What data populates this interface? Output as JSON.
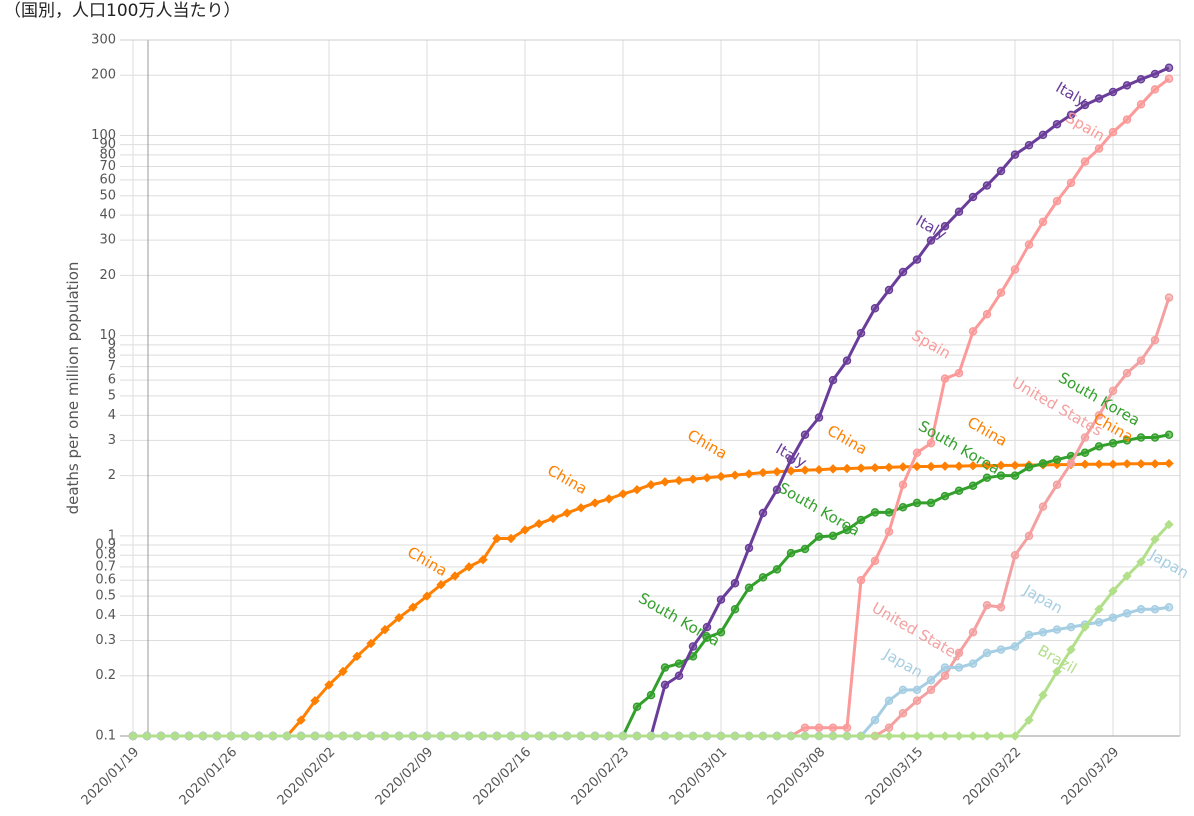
{
  "chart_data": {
    "type": "line",
    "title": "（国別，人口100万人当たり）",
    "y_label": "deaths per one million population",
    "log_scale": true,
    "grid": true,
    "categories": [
      "2020/01/19",
      "2020/01/20",
      "2020/01/21",
      "2020/01/22",
      "2020/01/23",
      "2020/01/24",
      "2020/01/25",
      "2020/01/26",
      "2020/01/27",
      "2020/01/28",
      "2020/01/29",
      "2020/01/30",
      "2020/01/31",
      "2020/02/01",
      "2020/02/02",
      "2020/02/03",
      "2020/02/04",
      "2020/02/05",
      "2020/02/06",
      "2020/02/07",
      "2020/02/08",
      "2020/02/09",
      "2020/02/10",
      "2020/02/11",
      "2020/02/12",
      "2020/02/13",
      "2020/02/14",
      "2020/02/15",
      "2020/02/16",
      "2020/02/17",
      "2020/02/18",
      "2020/02/19",
      "2020/02/20",
      "2020/02/21",
      "2020/02/22",
      "2020/02/23",
      "2020/02/24",
      "2020/02/25",
      "2020/02/26",
      "2020/02/27",
      "2020/02/28",
      "2020/02/29",
      "2020/03/01",
      "2020/03/02",
      "2020/03/03",
      "2020/03/04",
      "2020/03/05",
      "2020/03/06",
      "2020/03/07",
      "2020/03/08",
      "2020/03/09",
      "2020/03/10",
      "2020/03/11",
      "2020/03/12",
      "2020/03/13",
      "2020/03/14",
      "2020/03/15",
      "2020/03/16",
      "2020/03/17",
      "2020/03/18",
      "2020/03/19",
      "2020/03/20",
      "2020/03/21",
      "2020/03/22",
      "2020/03/23",
      "2020/03/24",
      "2020/03/25",
      "2020/03/26",
      "2020/03/27",
      "2020/03/28",
      "2020/03/29",
      "2020/03/30",
      "2020/03/31",
      "2020/04/01",
      "2020/04/02"
    ],
    "xticks": [
      "2020/01/19",
      "2020/01/26",
      "2020/02/02",
      "2020/02/09",
      "2020/02/16",
      "2020/02/23",
      "2020/03/01",
      "2020/03/08",
      "2020/03/15",
      "2020/03/22",
      "2020/03/29"
    ],
    "ylim": [
      0.1,
      300
    ],
    "yticks": [
      0.1,
      0.2,
      0.3,
      0.4,
      0.5,
      0.6,
      0.7,
      0.8,
      0.9,
      1,
      2,
      3,
      4,
      5,
      6,
      7,
      8,
      9,
      10,
      20,
      30,
      40,
      50,
      60,
      70,
      80,
      90,
      100,
      200,
      300
    ],
    "series": [
      {
        "name": "China",
        "color": "#ff7f00",
        "marker": "diamond",
        "values": [
          0.1,
          0.1,
          0.1,
          0.1,
          0.1,
          0.1,
          0.1,
          0.1,
          0.1,
          0.1,
          0.1,
          0.1,
          0.12,
          0.15,
          0.18,
          0.21,
          0.25,
          0.29,
          0.34,
          0.39,
          0.44,
          0.5,
          0.57,
          0.63,
          0.7,
          0.76,
          0.97,
          0.97,
          1.07,
          1.15,
          1.22,
          1.3,
          1.38,
          1.46,
          1.53,
          1.62,
          1.7,
          1.8,
          1.86,
          1.89,
          1.92,
          1.95,
          1.98,
          2.01,
          2.04,
          2.07,
          2.09,
          2.11,
          2.13,
          2.14,
          2.16,
          2.17,
          2.18,
          2.19,
          2.2,
          2.21,
          2.22,
          2.22,
          2.23,
          2.23,
          2.24,
          2.24,
          2.25,
          2.25,
          2.26,
          2.26,
          2.27,
          2.27,
          2.28,
          2.28,
          2.28,
          2.29,
          2.29,
          2.29,
          2.3
        ]
      },
      {
        "name": "South Korea",
        "color": "#33a02c",
        "marker": "circle",
        "values": [
          0.1,
          0.1,
          0.1,
          0.1,
          0.1,
          0.1,
          0.1,
          0.1,
          0.1,
          0.1,
          0.1,
          0.1,
          0.1,
          0.1,
          0.1,
          0.1,
          0.1,
          0.1,
          0.1,
          0.1,
          0.1,
          0.1,
          0.1,
          0.1,
          0.1,
          0.1,
          0.1,
          0.1,
          0.1,
          0.1,
          0.1,
          0.1,
          0.1,
          0.1,
          0.1,
          0.1,
          0.14,
          0.16,
          0.22,
          0.23,
          0.25,
          0.31,
          0.33,
          0.43,
          0.55,
          0.62,
          0.68,
          0.82,
          0.86,
          0.99,
          1.0,
          1.07,
          1.2,
          1.31,
          1.31,
          1.39,
          1.46,
          1.46,
          1.58,
          1.68,
          1.78,
          1.95,
          2.0,
          2.0,
          2.2,
          2.3,
          2.4,
          2.5,
          2.6,
          2.8,
          2.9,
          3.0,
          3.1,
          3.1,
          3.2
        ]
      },
      {
        "name": "Italy",
        "color": "#6a3d9a",
        "marker": "circle",
        "values": [
          0.1,
          0.1,
          0.1,
          0.1,
          0.1,
          0.1,
          0.1,
          0.1,
          0.1,
          0.1,
          0.1,
          0.1,
          0.1,
          0.1,
          0.1,
          0.1,
          0.1,
          0.1,
          0.1,
          0.1,
          0.1,
          0.1,
          0.1,
          0.1,
          0.1,
          0.1,
          0.1,
          0.1,
          0.1,
          0.1,
          0.1,
          0.1,
          0.1,
          0.1,
          0.1,
          0.1,
          0.1,
          0.1,
          0.18,
          0.2,
          0.28,
          0.35,
          0.48,
          0.58,
          0.87,
          1.3,
          1.7,
          2.4,
          3.2,
          3.9,
          6.0,
          7.5,
          10.3,
          13.7,
          16.9,
          20.8,
          24.0,
          29.9,
          35.2,
          41.6,
          49.3,
          56.3,
          66.5,
          80.3,
          89.4,
          100.7,
          113.9,
          126.8,
          142,
          153,
          165,
          178,
          191,
          203,
          218
        ]
      },
      {
        "name": "Spain",
        "color": "#fb9a99",
        "marker": "circle",
        "values": [
          0.1,
          0.1,
          0.1,
          0.1,
          0.1,
          0.1,
          0.1,
          0.1,
          0.1,
          0.1,
          0.1,
          0.1,
          0.1,
          0.1,
          0.1,
          0.1,
          0.1,
          0.1,
          0.1,
          0.1,
          0.1,
          0.1,
          0.1,
          0.1,
          0.1,
          0.1,
          0.1,
          0.1,
          0.1,
          0.1,
          0.1,
          0.1,
          0.1,
          0.1,
          0.1,
          0.1,
          0.1,
          0.1,
          0.1,
          0.1,
          0.1,
          0.1,
          0.1,
          0.1,
          0.1,
          0.1,
          0.1,
          0.1,
          0.11,
          0.11,
          0.11,
          0.11,
          0.6,
          0.75,
          1.05,
          1.8,
          2.6,
          2.9,
          6.1,
          6.5,
          10.5,
          12.8,
          16.4,
          21.4,
          28.5,
          37,
          47,
          58,
          74,
          86,
          104,
          120,
          143,
          170,
          192
        ]
      },
      {
        "name": "United States",
        "color": "#f4a0a0",
        "marker": "circle",
        "values": [
          0.1,
          0.1,
          0.1,
          0.1,
          0.1,
          0.1,
          0.1,
          0.1,
          0.1,
          0.1,
          0.1,
          0.1,
          0.1,
          0.1,
          0.1,
          0.1,
          0.1,
          0.1,
          0.1,
          0.1,
          0.1,
          0.1,
          0.1,
          0.1,
          0.1,
          0.1,
          0.1,
          0.1,
          0.1,
          0.1,
          0.1,
          0.1,
          0.1,
          0.1,
          0.1,
          0.1,
          0.1,
          0.1,
          0.1,
          0.1,
          0.1,
          0.1,
          0.1,
          0.1,
          0.1,
          0.1,
          0.1,
          0.1,
          0.1,
          0.1,
          0.1,
          0.1,
          0.1,
          0.1,
          0.11,
          0.13,
          0.15,
          0.17,
          0.2,
          0.26,
          0.33,
          0.45,
          0.44,
          0.8,
          1.0,
          1.4,
          1.8,
          2.3,
          3.1,
          4.0,
          5.3,
          6.5,
          7.5,
          9.5,
          15.5
        ]
      },
      {
        "name": "Japan",
        "color": "#a6cee3",
        "marker": "circle",
        "values": [
          0.1,
          0.1,
          0.1,
          0.1,
          0.1,
          0.1,
          0.1,
          0.1,
          0.1,
          0.1,
          0.1,
          0.1,
          0.1,
          0.1,
          0.1,
          0.1,
          0.1,
          0.1,
          0.1,
          0.1,
          0.1,
          0.1,
          0.1,
          0.1,
          0.1,
          0.1,
          0.1,
          0.1,
          0.1,
          0.1,
          0.1,
          0.1,
          0.1,
          0.1,
          0.1,
          0.1,
          0.1,
          0.1,
          0.1,
          0.1,
          0.1,
          0.1,
          0.1,
          0.1,
          0.1,
          0.1,
          0.1,
          0.1,
          0.1,
          0.1,
          0.1,
          0.1,
          0.1,
          0.12,
          0.15,
          0.17,
          0.17,
          0.19,
          0.22,
          0.22,
          0.23,
          0.26,
          0.27,
          0.28,
          0.32,
          0.33,
          0.34,
          0.35,
          0.36,
          0.37,
          0.39,
          0.41,
          0.43,
          0.43,
          0.44
        ]
      },
      {
        "name": "Brazil",
        "color": "#b2df8a",
        "marker": "diamond",
        "values": [
          0.1,
          0.1,
          0.1,
          0.1,
          0.1,
          0.1,
          0.1,
          0.1,
          0.1,
          0.1,
          0.1,
          0.1,
          0.1,
          0.1,
          0.1,
          0.1,
          0.1,
          0.1,
          0.1,
          0.1,
          0.1,
          0.1,
          0.1,
          0.1,
          0.1,
          0.1,
          0.1,
          0.1,
          0.1,
          0.1,
          0.1,
          0.1,
          0.1,
          0.1,
          0.1,
          0.1,
          0.1,
          0.1,
          0.1,
          0.1,
          0.1,
          0.1,
          0.1,
          0.1,
          0.1,
          0.1,
          0.1,
          0.1,
          0.1,
          0.1,
          0.1,
          0.1,
          0.1,
          0.1,
          0.1,
          0.1,
          0.1,
          0.1,
          0.1,
          0.1,
          0.1,
          0.1,
          0.1,
          0.1,
          0.12,
          0.16,
          0.21,
          0.27,
          0.35,
          0.43,
          0.53,
          0.63,
          0.74,
          0.96,
          1.14
        ]
      }
    ],
    "annotations": [
      {
        "text": "China",
        "series": "China",
        "x": "2020/02/09",
        "y": 0.74
      },
      {
        "text": "China",
        "series": "China",
        "x": "2020/02/19",
        "y": 1.9
      },
      {
        "text": "China",
        "series": "China",
        "x": "2020/02/29",
        "y": 2.85
      },
      {
        "text": "China",
        "series": "China",
        "x": "2020/03/10",
        "y": 3.0
      },
      {
        "text": "China",
        "series": "China",
        "x": "2020/03/20",
        "y": 3.3
      },
      {
        "text": "China",
        "series": "China",
        "x": "2020/03/29",
        "y": 3.45
      },
      {
        "text": "South Korea",
        "series": "South Korea",
        "x": "2020/02/27",
        "y": 0.38
      },
      {
        "text": "South Korea",
        "series": "South Korea",
        "x": "2020/03/08",
        "y": 1.35
      },
      {
        "text": "South Korea",
        "series": "South Korea",
        "x": "2020/03/18",
        "y": 2.75
      },
      {
        "text": "South Korea",
        "series": "South Korea",
        "x": "2020/03/28",
        "y": 4.8
      },
      {
        "text": "Italy",
        "series": "Italy",
        "x": "2020/03/06",
        "y": 2.5
      },
      {
        "text": "Italy",
        "series": "Italy",
        "x": "2020/03/16",
        "y": 34.5
      },
      {
        "text": "Italy",
        "series": "Italy",
        "x": "2020/03/26",
        "y": 160
      },
      {
        "text": "Spain",
        "series": "Spain",
        "x": "2020/03/16",
        "y": 9
      },
      {
        "text": "Spain",
        "series": "Spain",
        "x": "2020/03/27",
        "y": 110
      },
      {
        "text": "United States",
        "series": "United States",
        "x": "2020/03/15",
        "y": 0.33
      },
      {
        "text": "United States",
        "series": "United States",
        "x": "2020/03/25",
        "y": 4.4
      },
      {
        "text": "Japan",
        "series": "Japan",
        "x": "2020/03/14",
        "y": 0.23
      },
      {
        "text": "Japan",
        "series": "Japan",
        "x": "2020/03/24",
        "y": 0.48
      },
      {
        "text": "Japan",
        "series": "Japan",
        "x": "2020/04/02",
        "y": 0.72
      },
      {
        "text": "Brazil",
        "series": "Brazil",
        "x": "2020/03/25",
        "y": 0.24
      }
    ]
  }
}
